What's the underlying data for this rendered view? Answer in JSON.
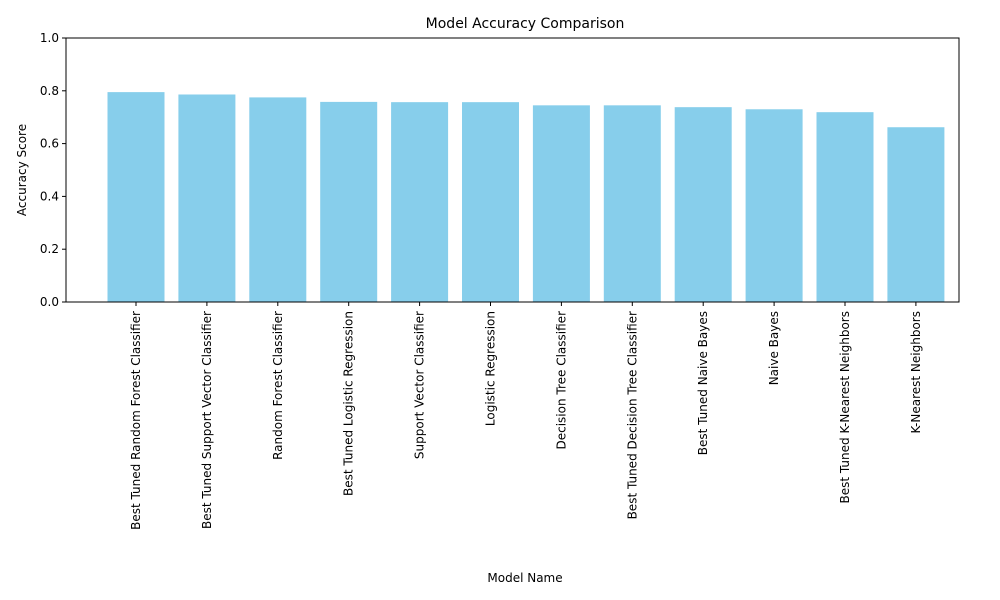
{
  "chart_data": {
    "type": "bar",
    "title": "Model Accuracy Comparison",
    "xlabel": "Model Name",
    "ylabel": "Accuracy Score",
    "ylim": [
      0,
      1.0
    ],
    "yticks": [
      "0.0",
      "0.2",
      "0.4",
      "0.6",
      "0.8",
      "1.0"
    ],
    "ytick_values": [
      0.0,
      0.2,
      0.4,
      0.6,
      0.8,
      1.0
    ],
    "grid": false,
    "bar_color": "#87ceeb",
    "categories": [
      "Best Tuned Random Forest Classifier",
      "Best Tuned Support Vector Classifier",
      "Random Forest Classifier",
      "Best Tuned Logistic Regression",
      "Support Vector Classifier",
      "Logistic Regression",
      "Decision Tree Classifier",
      "Best Tuned Decision Tree Classifier",
      "Best Tuned Naive Bayes",
      "Naive Bayes",
      "Best Tuned K-Nearest Neighbors",
      "K-Nearest Neighbors"
    ],
    "values": [
      0.795,
      0.786,
      0.775,
      0.758,
      0.757,
      0.757,
      0.745,
      0.745,
      0.738,
      0.73,
      0.719,
      0.662
    ]
  }
}
